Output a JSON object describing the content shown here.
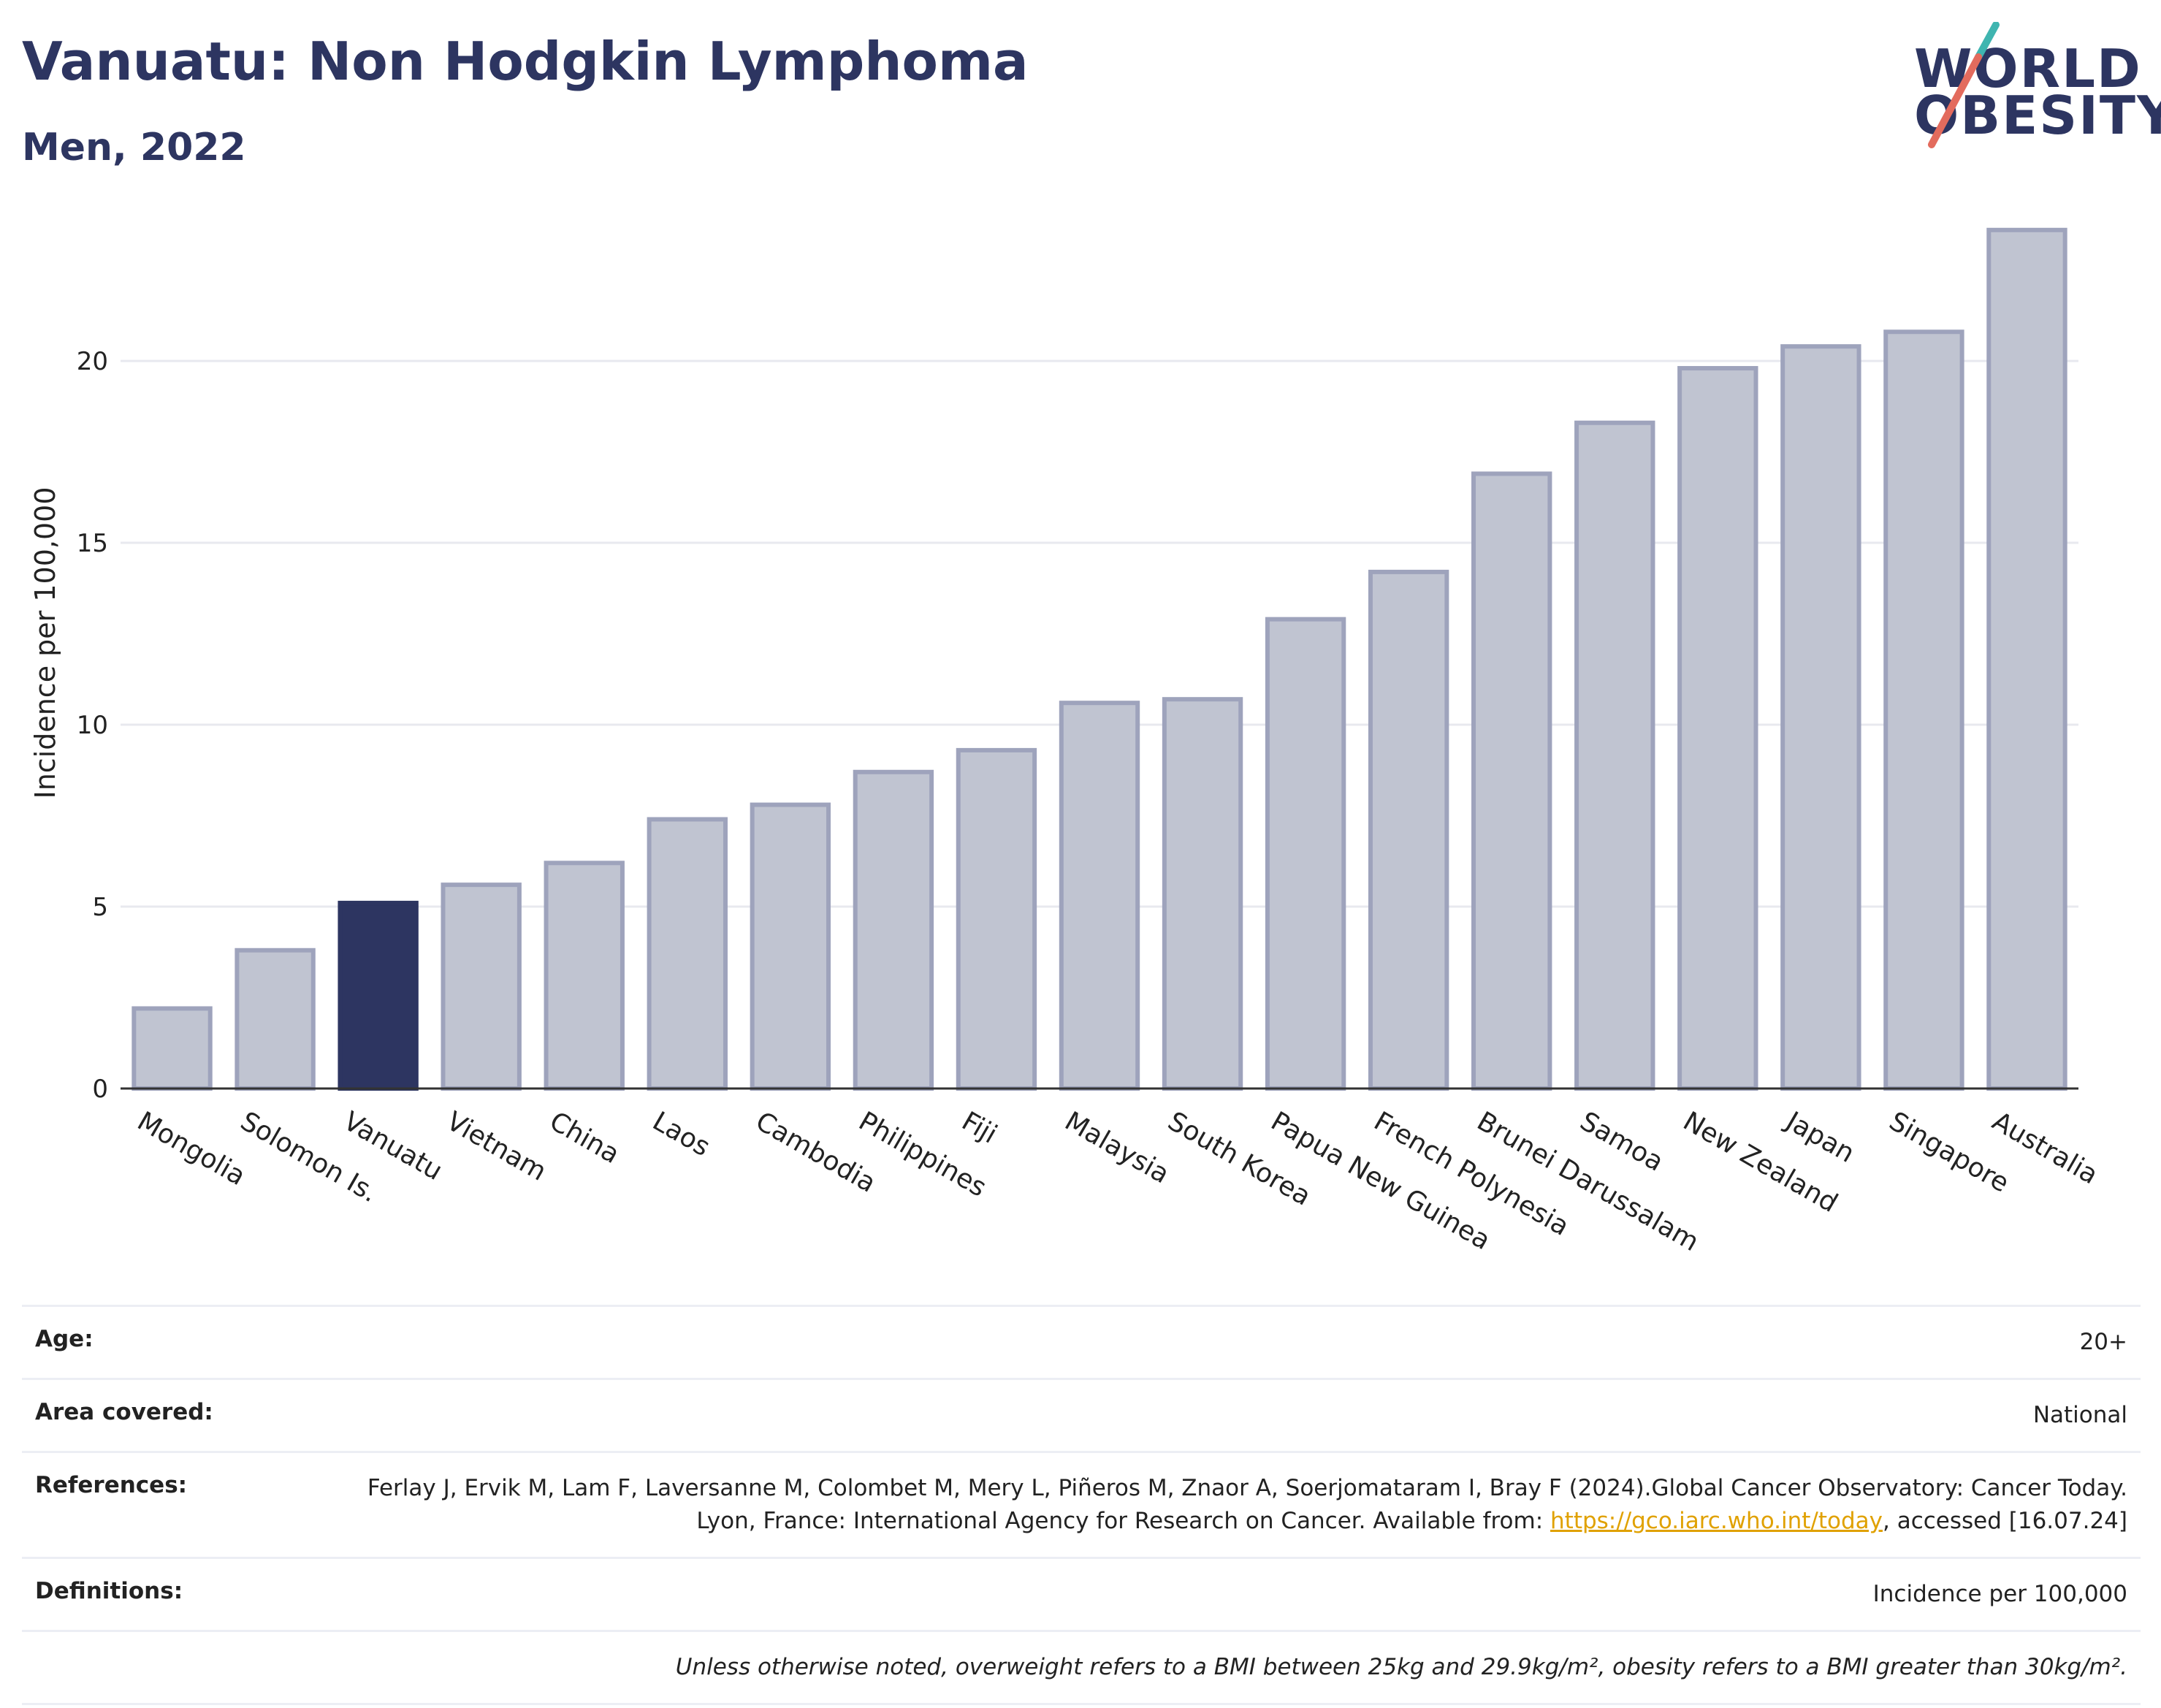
{
  "header": {
    "title": "Vanuatu: Non Hodgkin Lymphoma",
    "subtitle": "Men, 2022"
  },
  "logo": {
    "line1": "WORLD",
    "line2": "OBESITY",
    "accent_colors": [
      "#3fb5b0",
      "#e36b5d"
    ]
  },
  "chart_data": {
    "type": "bar",
    "ylabel": "Incidence per 100,000",
    "ylim": [
      0,
      24.5
    ],
    "yticks": [
      0,
      5,
      10,
      15,
      20
    ],
    "grid": true,
    "highlight": "Vanuatu",
    "colors": {
      "bar": "#c0c4d1",
      "bar_border": "#9ea3bc",
      "highlight": "#2d3561",
      "grid": "#e8e9ef",
      "axis": "#333333"
    },
    "categories": [
      "Mongolia",
      "Solomon Is.",
      "Vanuatu",
      "Vietnam",
      "China",
      "Laos",
      "Cambodia",
      "Philippines",
      "Fiji",
      "Malaysia",
      "South Korea",
      "Papua New Guinea",
      "French Polynesia",
      "Brunei Darussalam",
      "Samoa",
      "New Zealand",
      "Japan",
      "Singapore",
      "Australia"
    ],
    "values": [
      2.2,
      3.8,
      5.1,
      5.6,
      6.2,
      7.4,
      7.8,
      8.7,
      9.3,
      10.6,
      10.7,
      12.9,
      14.2,
      16.9,
      18.3,
      19.8,
      20.4,
      20.8,
      23.6
    ]
  },
  "meta": {
    "age_label": "Age:",
    "age_value": "20+",
    "area_label": "Area covered:",
    "area_value": "National",
    "references_label": "References:",
    "references_text1": "Ferlay J, Ervik M, Lam F, Laversanne M, Colombet M, Mery L, Piñeros M, Znaor A, Soerjomataram I, Bray F (2024).Global Cancer Observatory: Cancer Today. Lyon, France: International Agency for Research on Cancer. Available from: ",
    "references_link": "https://gco.iarc.who.int/today",
    "references_text2": ", accessed [16.07.24]",
    "definitions_label": "Definitions:",
    "definitions_value": "Incidence per 100,000",
    "note": "Unless otherwise noted, overweight refers to a BMI between 25kg and 29.9kg/m², obesity refers to a BMI greater than 30kg/m²."
  }
}
